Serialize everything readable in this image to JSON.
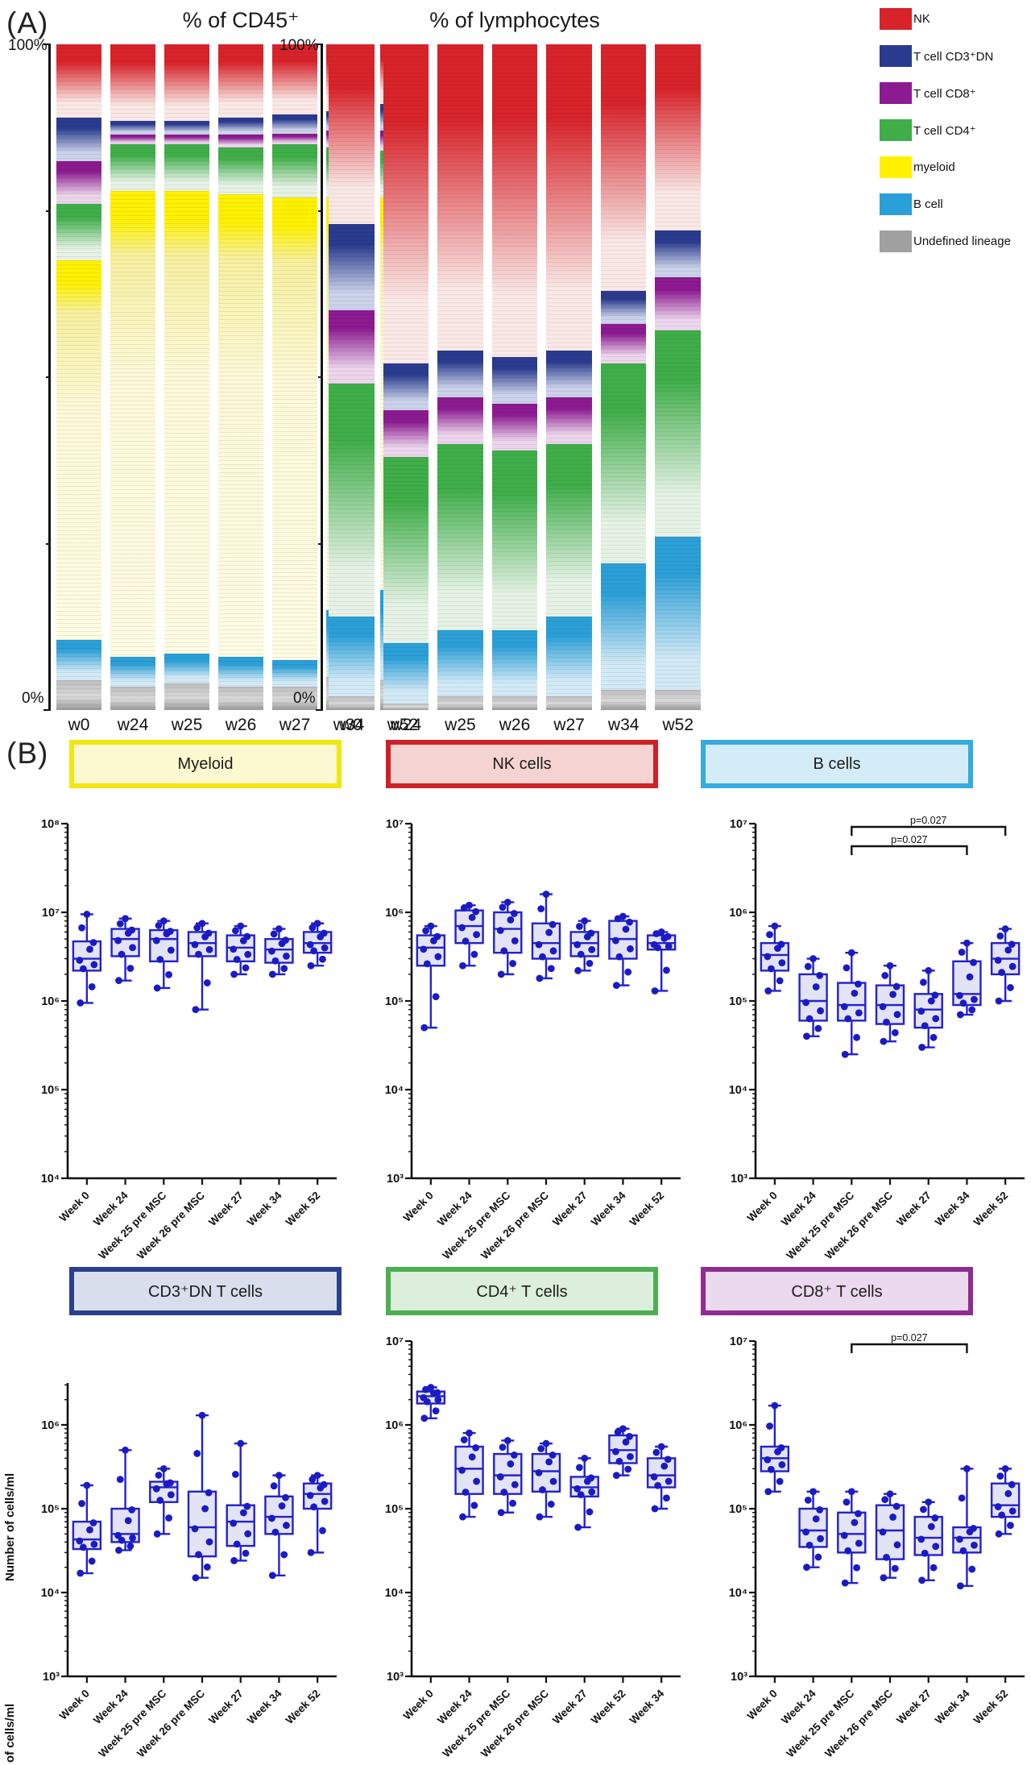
{
  "figure": {
    "panel_a_label": "(A)",
    "panel_b_label": "(B)"
  },
  "legend": {
    "items": [
      {
        "key": "nk",
        "label": "NK",
        "color": "#D8232A",
        "pale": "#FAE8E6"
      },
      {
        "key": "dn",
        "label": "T cell CD3⁺DN",
        "color": "#2A3B8F",
        "pale": "#CBD2E9"
      },
      {
        "key": "cd8",
        "label": "T cell CD8⁺",
        "color": "#8C1A90",
        "pale": "#ECD5ED"
      },
      {
        "key": "cd4",
        "label": "T cell CD4⁺",
        "color": "#3FAE49",
        "pale": "#E6F2E6"
      },
      {
        "key": "myeloid",
        "label": "myeloid",
        "color": "#FFF100",
        "pale": "#FCF9D8"
      },
      {
        "key": "b",
        "label": "B cell",
        "color": "#2B9FD7",
        "pale": "#D2E9F6"
      },
      {
        "key": "undef",
        "label": "Undefined lineage",
        "color": "#A0A0A0",
        "pale": "#D9D9D9"
      }
    ]
  },
  "chart_data": [
    {
      "type": "bar",
      "subtype": "stacked_percent",
      "title": "% of CD45⁺",
      "y_top": "100%",
      "y_bottom": "0%",
      "categories": [
        "w0",
        "w24",
        "w25",
        "w26",
        "w27",
        "w34",
        "w52"
      ],
      "series": [
        {
          "name": "NK",
          "key": "nk",
          "values": [
            11,
            11.5,
            11.5,
            11,
            10.5,
            10,
            9
          ]
        },
        {
          "name": "T cell CD3⁺DN",
          "key": "dn",
          "values": [
            6.5,
            2,
            2,
            2.5,
            3,
            3,
            4
          ]
        },
        {
          "name": "T cell CD8⁺",
          "key": "cd8",
          "values": [
            6.5,
            1.5,
            1.5,
            2,
            1.5,
            2.5,
            3
          ]
        },
        {
          "name": "T cell CD4⁺",
          "key": "cd4",
          "values": [
            8.5,
            7,
            7,
            7,
            8,
            7.5,
            7
          ]
        },
        {
          "name": "myeloid",
          "key": "myeloid",
          "values": [
            57,
            70,
            69.5,
            69.5,
            69.5,
            62,
            59
          ]
        },
        {
          "name": "B cell",
          "key": "b",
          "values": [
            6,
            4.5,
            4.5,
            4.5,
            4,
            10,
            13.5
          ]
        },
        {
          "name": "Undefined lineage",
          "key": "undef",
          "values": [
            4.5,
            3.5,
            4,
            3.5,
            3.5,
            5,
            4.5
          ]
        }
      ]
    },
    {
      "type": "bar",
      "subtype": "stacked_percent",
      "title": "% of lymphocytes",
      "y_top": "100%",
      "y_bottom": "0%",
      "categories": [
        "w0",
        "w24",
        "w25",
        "w26",
        "w27",
        "w34",
        "w52"
      ],
      "series": [
        {
          "name": "NK",
          "key": "nk",
          "values": [
            27,
            48,
            46,
            47,
            46,
            37,
            28
          ]
        },
        {
          "name": "T cell CD3⁺DN",
          "key": "dn",
          "values": [
            13,
            7,
            7,
            7,
            7,
            5,
            7
          ]
        },
        {
          "name": "T cell CD8⁺",
          "key": "cd8",
          "values": [
            11,
            7,
            7,
            7,
            7,
            6,
            8
          ]
        },
        {
          "name": "T cell CD4⁺",
          "key": "cd4",
          "values": [
            35,
            28,
            28,
            27,
            26,
            30,
            31
          ]
        },
        {
          "name": "myeloid",
          "key": "myeloid",
          "values": [
            0,
            0,
            0,
            0,
            0,
            0,
            0
          ]
        },
        {
          "name": "B cell",
          "key": "b",
          "values": [
            12,
            9,
            10,
            10,
            12,
            19,
            23
          ]
        },
        {
          "name": "Undefined lineage",
          "key": "undef",
          "values": [
            2,
            1,
            2,
            2,
            2,
            3,
            3
          ]
        }
      ]
    },
    {
      "type": "boxplot",
      "title": "Myeloid",
      "title_border": "#F2E611",
      "title_fill": "#FCF8CF",
      "ylabel": "Number of cells/ml",
      "yscale": "log",
      "min_exp": 4,
      "top_exp": 8,
      "label_min_exp": 4,
      "label_max_exp": 8,
      "categories": [
        "Week 0",
        "Week 24",
        "Week 25 pre MSC",
        "Week 26 pre MSC",
        "Week 27",
        "Week 34",
        "Week 52"
      ],
      "boxes": [
        {
          "lo": 950000,
          "q1": 2200000,
          "med": 3000000,
          "q3": 4700000,
          "hi": 9500000
        },
        {
          "lo": 1700000,
          "q1": 3200000,
          "med": 5000000,
          "q3": 6500000,
          "hi": 8500000
        },
        {
          "lo": 1400000,
          "q1": 2800000,
          "med": 5000000,
          "q3": 6300000,
          "hi": 8000000
        },
        {
          "lo": 800000,
          "q1": 3200000,
          "med": 4500000,
          "q3": 6000000,
          "hi": 7500000
        },
        {
          "lo": 2000000,
          "q1": 2800000,
          "med": 4000000,
          "q3": 5500000,
          "hi": 7000000
        },
        {
          "lo": 2000000,
          "q1": 2700000,
          "med": 3800000,
          "q3": 5000000,
          "hi": 6500000
        },
        {
          "lo": 2500000,
          "q1": 3500000,
          "med": 4500000,
          "q3": 6000000,
          "hi": 7500000
        }
      ],
      "brackets": []
    },
    {
      "type": "boxplot",
      "title": "NK cells",
      "title_border": "#CE2127",
      "title_fill": "#F5D3D3",
      "ylabel": "Number of cells/ml",
      "yscale": "log",
      "min_exp": 3,
      "top_exp": 7,
      "label_min_exp": 3,
      "label_max_exp": 7,
      "categories": [
        "Week 0",
        "Week 24",
        "Week 25 pre MSC",
        "Week 26 pre MSC",
        "Week 27",
        "Week 34",
        "Week 52"
      ],
      "boxes": [
        {
          "lo": 50000,
          "q1": 250000,
          "med": 400000,
          "q3": 550000,
          "hi": 700000
        },
        {
          "lo": 250000,
          "q1": 450000,
          "med": 700000,
          "q3": 1050000,
          "hi": 1200000
        },
        {
          "lo": 200000,
          "q1": 350000,
          "med": 650000,
          "q3": 1000000,
          "hi": 1300000
        },
        {
          "lo": 180000,
          "q1": 300000,
          "med": 450000,
          "q3": 750000,
          "hi": 1600000
        },
        {
          "lo": 220000,
          "q1": 320000,
          "med": 450000,
          "q3": 600000,
          "hi": 800000
        },
        {
          "lo": 150000,
          "q1": 300000,
          "med": 500000,
          "q3": 800000,
          "hi": 900000
        },
        {
          "lo": 130000,
          "q1": 380000,
          "med": 450000,
          "q3": 550000,
          "hi": 600000
        }
      ],
      "brackets": []
    },
    {
      "type": "boxplot",
      "title": "B cells",
      "title_border": "#35ABDF",
      "title_fill": "#D3ECF8",
      "ylabel": "Number of cells/ml",
      "yscale": "log",
      "min_exp": 3,
      "top_exp": 7,
      "label_min_exp": 3,
      "label_max_exp": 7,
      "categories": [
        "Week 0",
        "Week 24",
        "Week 25 pre MSC",
        "Week 26 pre MSC",
        "Week 27",
        "Week 34",
        "Week 52"
      ],
      "boxes": [
        {
          "lo": 130000,
          "q1": 220000,
          "med": 330000,
          "q3": 450000,
          "hi": 700000
        },
        {
          "lo": 40000,
          "q1": 60000,
          "med": 100000,
          "q3": 200000,
          "hi": 300000
        },
        {
          "lo": 25000,
          "q1": 60000,
          "med": 90000,
          "q3": 160000,
          "hi": 350000
        },
        {
          "lo": 35000,
          "q1": 55000,
          "med": 90000,
          "q3": 150000,
          "hi": 250000
        },
        {
          "lo": 30000,
          "q1": 50000,
          "med": 80000,
          "q3": 120000,
          "hi": 220000
        },
        {
          "lo": 70000,
          "q1": 90000,
          "med": 120000,
          "q3": 280000,
          "hi": 450000
        },
        {
          "lo": 100000,
          "q1": 200000,
          "med": 300000,
          "q3": 450000,
          "hi": 650000
        }
      ],
      "brackets": [
        {
          "from": 2,
          "to": 6,
          "label": "p=0.027",
          "level": 0
        },
        {
          "from": 2,
          "to": 5,
          "label": "p=0.027",
          "level": 1
        }
      ]
    },
    {
      "type": "boxplot",
      "title": "CD3⁺DN T cells",
      "title_border": "#2A3F8D",
      "title_fill": "#D9DEEC",
      "ylabel": "Number of cells/ml",
      "yscale": "log",
      "min_exp": 3,
      "top_exp": 6.5,
      "label_min_exp": 3,
      "label_max_exp": 6,
      "categories": [
        "Week 0",
        "Week 24",
        "Week 25 pre MSC",
        "Week 26 pre MSC",
        "Week 27",
        "Week 34",
        "Week 52"
      ],
      "boxes": [
        {
          "lo": 17000,
          "q1": 33000,
          "med": 43000,
          "q3": 70000,
          "hi": 190000
        },
        {
          "lo": 32000,
          "q1": 40000,
          "med": 50000,
          "q3": 100000,
          "hi": 500000
        },
        {
          "lo": 50000,
          "q1": 120000,
          "med": 180000,
          "q3": 210000,
          "hi": 300000
        },
        {
          "lo": 15000,
          "q1": 27000,
          "med": 60000,
          "q3": 160000,
          "hi": 1300000
        },
        {
          "lo": 24000,
          "q1": 36000,
          "med": 70000,
          "q3": 110000,
          "hi": 600000
        },
        {
          "lo": 16000,
          "q1": 50000,
          "med": 80000,
          "q3": 140000,
          "hi": 250000
        },
        {
          "lo": 30000,
          "q1": 100000,
          "med": 150000,
          "q3": 200000,
          "hi": 250000
        }
      ],
      "brackets": []
    },
    {
      "type": "boxplot",
      "title": "CD4⁺ T cells",
      "title_border": "#4CAF50",
      "title_fill": "#DCEFDC",
      "ylabel": "Number of cells/ml",
      "yscale": "log",
      "min_exp": 3,
      "top_exp": 7,
      "label_min_exp": 3,
      "label_max_exp": 7,
      "categories": [
        "Week 0",
        "Week 24",
        "Week 25 pre MSC",
        "Week 26 pre MSC",
        "Week 27",
        "Week 52",
        "Week 34"
      ],
      "boxes": [
        {
          "lo": 1200000,
          "q1": 1800000,
          "med": 2200000,
          "q3": 2500000,
          "hi": 2800000
        },
        {
          "lo": 80000,
          "q1": 150000,
          "med": 300000,
          "q3": 550000,
          "hi": 800000
        },
        {
          "lo": 90000,
          "q1": 150000,
          "med": 250000,
          "q3": 450000,
          "hi": 650000
        },
        {
          "lo": 80000,
          "q1": 160000,
          "med": 280000,
          "q3": 450000,
          "hi": 600000
        },
        {
          "lo": 60000,
          "q1": 140000,
          "med": 180000,
          "q3": 240000,
          "hi": 400000
        },
        {
          "lo": 250000,
          "q1": 350000,
          "med": 500000,
          "q3": 750000,
          "hi": 900000
        },
        {
          "lo": 100000,
          "q1": 180000,
          "med": 250000,
          "q3": 400000,
          "hi": 550000
        }
      ],
      "brackets": []
    },
    {
      "type": "boxplot",
      "title": "CD8⁺ T cells",
      "title_border": "#8E2C90",
      "title_fill": "#EBD9ED",
      "ylabel": "Number of cells/ml",
      "yscale": "log",
      "min_exp": 3,
      "top_exp": 7,
      "label_min_exp": 3,
      "label_max_exp": 7,
      "categories": [
        "Week 0",
        "Week 24",
        "Week 25 pre MSC",
        "Week 26 pre MSC",
        "Week 27",
        "Week 34",
        "Week 52"
      ],
      "boxes": [
        {
          "lo": 160000,
          "q1": 280000,
          "med": 400000,
          "q3": 550000,
          "hi": 1700000
        },
        {
          "lo": 20000,
          "q1": 35000,
          "med": 55000,
          "q3": 100000,
          "hi": 160000
        },
        {
          "lo": 13000,
          "q1": 30000,
          "med": 50000,
          "q3": 90000,
          "hi": 160000
        },
        {
          "lo": 15000,
          "q1": 25000,
          "med": 55000,
          "q3": 110000,
          "hi": 150000
        },
        {
          "lo": 14000,
          "q1": 28000,
          "med": 45000,
          "q3": 80000,
          "hi": 120000
        },
        {
          "lo": 12000,
          "q1": 30000,
          "med": 45000,
          "q3": 60000,
          "hi": 300000
        },
        {
          "lo": 50000,
          "q1": 80000,
          "med": 110000,
          "q3": 200000,
          "hi": 300000
        }
      ],
      "brackets": [
        {
          "from": 2,
          "to": 5,
          "label": "p=0.027",
          "level": 0
        }
      ]
    }
  ]
}
